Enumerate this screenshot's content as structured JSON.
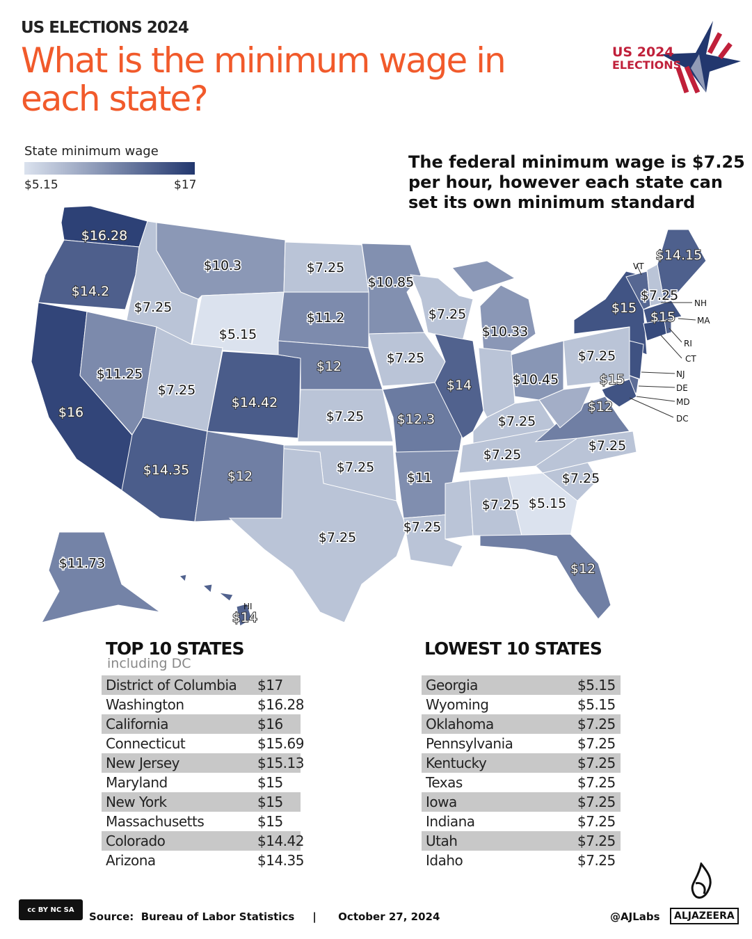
{
  "header": {
    "kicker": "US ELECTIONS 2024",
    "title": "What is the minimum wage in each state?",
    "logo_text": [
      "US 2024",
      "ELECTIONS"
    ]
  },
  "legend": {
    "title": "State minimum wage",
    "min": 5.15,
    "max": 17,
    "min_label": "$5.15",
    "max_label": "$17",
    "colors": [
      "#dbe2ee",
      "#22376e"
    ]
  },
  "subtitle": "The federal minimum wage is $7.25 per hour, however each state can set its own minimum standard",
  "states": [
    {
      "id": "WA",
      "wage": 16.28,
      "label": "$16.28"
    },
    {
      "id": "OR",
      "wage": 14.2,
      "label": "$14.2"
    },
    {
      "id": "CA",
      "wage": 16,
      "label": "$16"
    },
    {
      "id": "ID",
      "wage": 7.25,
      "label": "$7.25"
    },
    {
      "id": "NV",
      "wage": 11.25,
      "label": "$11.25"
    },
    {
      "id": "MT",
      "wage": 10.3,
      "label": "$10.3"
    },
    {
      "id": "WY",
      "wage": 5.15,
      "label": "$5.15"
    },
    {
      "id": "UT",
      "wage": 7.25,
      "label": "$7.25"
    },
    {
      "id": "CO",
      "wage": 14.42,
      "label": "$14.42"
    },
    {
      "id": "AZ",
      "wage": 14.35,
      "label": "$14.35"
    },
    {
      "id": "NM",
      "wage": 12,
      "label": "$12"
    },
    {
      "id": "ND",
      "wage": 7.25,
      "label": "$7.25"
    },
    {
      "id": "SD",
      "wage": 11.2,
      "label": "$11.2"
    },
    {
      "id": "NE",
      "wage": 12,
      "label": "$12"
    },
    {
      "id": "KS",
      "wage": 7.25,
      "label": "$7.25"
    },
    {
      "id": "OK",
      "wage": 7.25,
      "label": "$7.25"
    },
    {
      "id": "TX",
      "wage": 7.25,
      "label": "$7.25"
    },
    {
      "id": "MN",
      "wage": 10.85,
      "label": "$10.85"
    },
    {
      "id": "IA",
      "wage": 7.25,
      "label": "$7.25"
    },
    {
      "id": "MO",
      "wage": 12.3,
      "label": "$12.3"
    },
    {
      "id": "AR",
      "wage": 11,
      "label": "$11"
    },
    {
      "id": "LA",
      "wage": 7.25,
      "label": "$7.25"
    },
    {
      "id": "WI",
      "wage": 7.25,
      "label": "$7.25"
    },
    {
      "id": "IL",
      "wage": 14,
      "label": "$14"
    },
    {
      "id": "MI",
      "wage": 10.33,
      "label": "$10.33"
    },
    {
      "id": "IN",
      "wage": 7.25,
      "label": "$7.25"
    },
    {
      "id": "OH",
      "wage": 10.45,
      "label": "$10.45"
    },
    {
      "id": "KY",
      "wage": 7.25,
      "label": "$7.25"
    },
    {
      "id": "TN",
      "wage": 7.25,
      "label": "$7.25"
    },
    {
      "id": "MS",
      "wage": 7.25,
      "label": "$7.25"
    },
    {
      "id": "AL",
      "wage": 7.25,
      "label": "$7.25"
    },
    {
      "id": "GA",
      "wage": 5.15,
      "label": "$5.15"
    },
    {
      "id": "FL",
      "wage": 12,
      "label": "$12"
    },
    {
      "id": "SC",
      "wage": 7.25,
      "label": "$7.25"
    },
    {
      "id": "NC",
      "wage": 7.25,
      "label": "$7.25"
    },
    {
      "id": "VA",
      "wage": 12,
      "label": "$12"
    },
    {
      "id": "WV",
      "wage": 8.75,
      "label": ""
    },
    {
      "id": "PA",
      "wage": 7.25,
      "label": "$7.25"
    },
    {
      "id": "NY",
      "wage": 15,
      "label": "$15"
    },
    {
      "id": "VT",
      "wage": 13.67,
      "label": ""
    },
    {
      "id": "NH",
      "wage": 7.25,
      "label": "$7.25"
    },
    {
      "id": "ME",
      "wage": 14.15,
      "label": "$14.15"
    },
    {
      "id": "MA",
      "wage": 15,
      "label": "$15"
    },
    {
      "id": "CT",
      "wage": 15.69,
      "label": ""
    },
    {
      "id": "RI",
      "wage": 14,
      "label": ""
    },
    {
      "id": "NJ",
      "wage": 15.13,
      "label": ""
    },
    {
      "id": "DE",
      "wage": 13.25,
      "label": ""
    },
    {
      "id": "MD",
      "wage": 15,
      "label": "$15"
    },
    {
      "id": "AK",
      "wage": 11.73,
      "label": "$11.73"
    },
    {
      "id": "HI",
      "wage": 14,
      "label": "$14"
    }
  ],
  "callouts": [
    "VT",
    "NH",
    "MA",
    "RI",
    "CT",
    "NJ",
    "DE",
    "MD",
    "DC",
    "HI"
  ],
  "top10": {
    "title": "TOP 10 STATES",
    "subtitle": "including DC",
    "rows": [
      [
        "District of Columbia",
        "$17"
      ],
      [
        "Washington",
        "$16.28"
      ],
      [
        "California",
        "$16"
      ],
      [
        "Connecticut",
        "$15.69"
      ],
      [
        "New Jersey",
        "$15.13"
      ],
      [
        "Maryland",
        "$15"
      ],
      [
        "New York",
        "$15"
      ],
      [
        "Massachusetts",
        "$15"
      ],
      [
        "Colorado",
        "$14.42"
      ],
      [
        "Arizona",
        "$14.35"
      ]
    ]
  },
  "lowest10": {
    "title": "LOWEST 10 STATES",
    "rows": [
      [
        "Georgia",
        "$5.15"
      ],
      [
        "Wyoming",
        "$5.15"
      ],
      [
        "Oklahoma",
        "$7.25"
      ],
      [
        "Pennsylvania",
        "$7.25"
      ],
      [
        "Kentucky",
        "$7.25"
      ],
      [
        "Texas",
        "$7.25"
      ],
      [
        "Iowa",
        "$7.25"
      ],
      [
        "Indiana",
        "$7.25"
      ],
      [
        "Utah",
        "$7.25"
      ],
      [
        "Idaho",
        "$7.25"
      ]
    ]
  },
  "footer": {
    "license": "cc BY NC SA",
    "source": "Source:  Bureau of Labor Statistics     |      October 27, 2024",
    "handle": "@AJLabs",
    "brand": "ALJAZEERA"
  }
}
